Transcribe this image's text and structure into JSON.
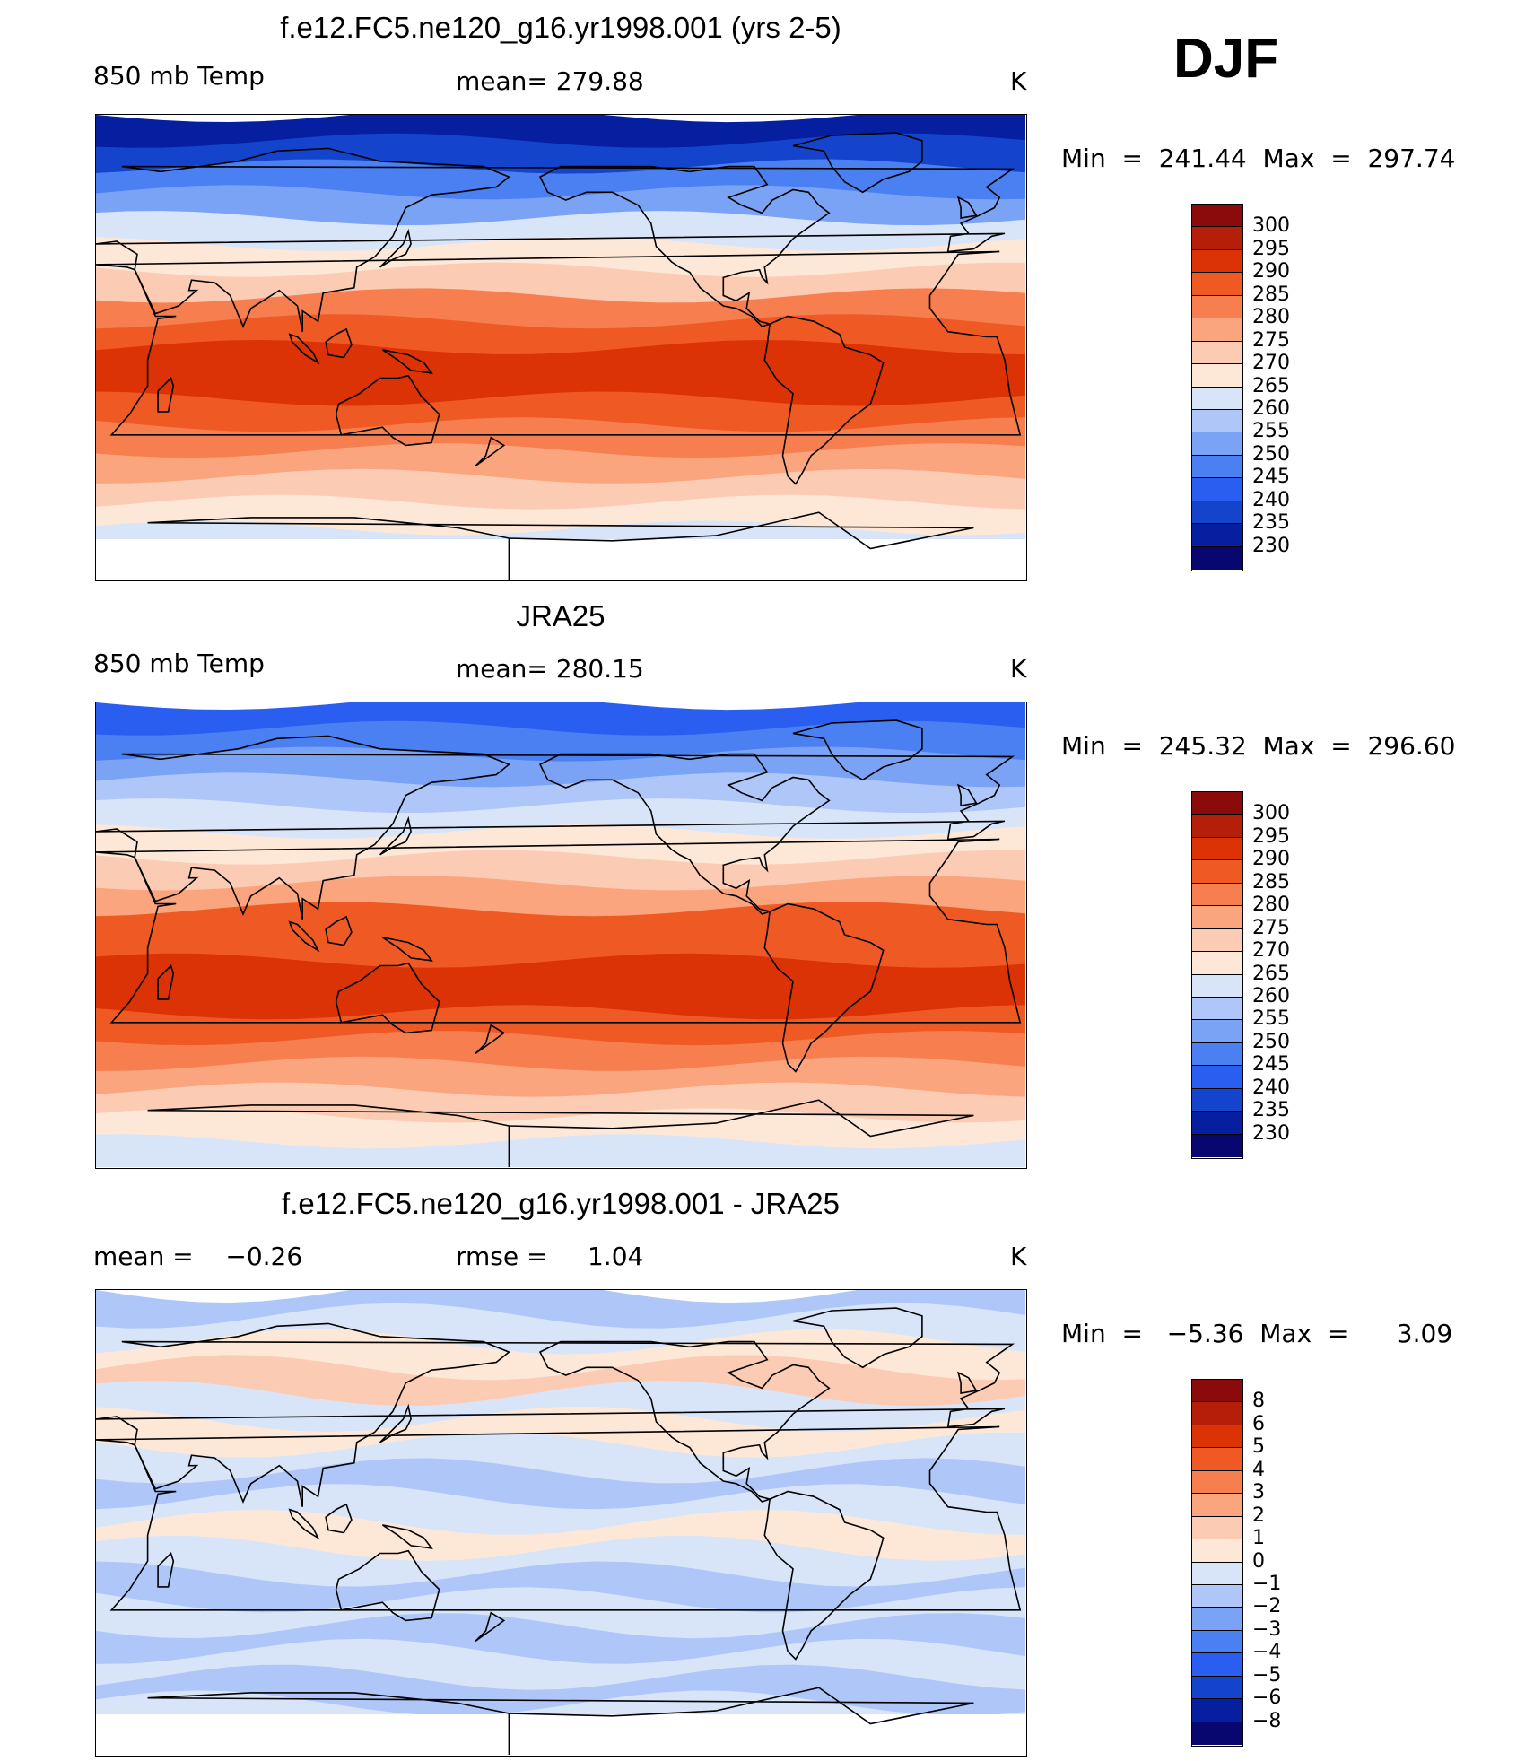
{
  "season": "DJF",
  "colors": {
    "temp_palette": [
      "#08076f",
      "#061fa0",
      "#1544cc",
      "#2a5ef0",
      "#4a80f2",
      "#7ba3f5",
      "#aec7f8",
      "#d8e5f9",
      "#fde8d8",
      "#fccbb3",
      "#fba57f",
      "#f77e4f",
      "#ef5a24",
      "#db3305",
      "#b51e08",
      "#8a0b09"
    ],
    "diff_palette": [
      "#08076f",
      "#061fa0",
      "#1544cc",
      "#2a5ef0",
      "#4a80f2",
      "#7ba3f5",
      "#aec7f8",
      "#d8e5f9",
      "#fde8d8",
      "#fccbb3",
      "#fba57f",
      "#f77e4f",
      "#ef5a24",
      "#db3305",
      "#b51e08",
      "#8a0b09"
    ],
    "missing": "#ffffff",
    "coast": "#000000"
  },
  "panels": [
    {
      "title": "f.e12.FC5.ne120_g16.yr1998.001 (yrs 2-5)",
      "left_label": "850 mb Temp",
      "center_label": "mean= 279.88",
      "units": "K",
      "minmax": "Min  =  241.44  Max  =  297.74",
      "colorbar_ticks": [
        "300",
        "295",
        "290",
        "285",
        "280",
        "275",
        "270",
        "265",
        "260",
        "255",
        "250",
        "245",
        "240",
        "235",
        "230"
      ],
      "bands_top_to_bottom": [
        1,
        2,
        4,
        5,
        7,
        8,
        9,
        11,
        12,
        13,
        13,
        12,
        11,
        10,
        9,
        8,
        7,
        8
      ]
    },
    {
      "title": "JRA25",
      "left_label": "850 mb Temp",
      "center_label": "mean= 280.15",
      "units": "K",
      "minmax": "Min  =  245.32  Max  =  296.60",
      "colorbar_ticks": [
        "300",
        "295",
        "290",
        "285",
        "280",
        "275",
        "270",
        "265",
        "260",
        "255",
        "250",
        "245",
        "240",
        "235",
        "230"
      ],
      "bands_top_to_bottom": [
        3,
        4,
        5,
        6,
        7,
        8,
        9,
        10,
        12,
        12,
        13,
        13,
        12,
        11,
        10,
        9,
        8,
        7
      ]
    },
    {
      "title": "f.e12.FC5.ne120_g16.yr1998.001 - JRA25",
      "left_label": "mean =    −0.26",
      "center_label": "rmse =     1.04",
      "units": "K",
      "minmax": "Min  =   −5.36  Max  =      3.09",
      "colorbar_ticks": [
        "8",
        "6",
        "5",
        "4",
        "3",
        "2",
        "1",
        "0",
        "−1",
        "−2",
        "−3",
        "−4",
        "−5",
        "−6",
        "−8"
      ],
      "bands_top_to_bottom": [
        6,
        7,
        8,
        9,
        7,
        8,
        7,
        6,
        7,
        8,
        7,
        6,
        7,
        6,
        7,
        6,
        7,
        7
      ]
    }
  ]
}
